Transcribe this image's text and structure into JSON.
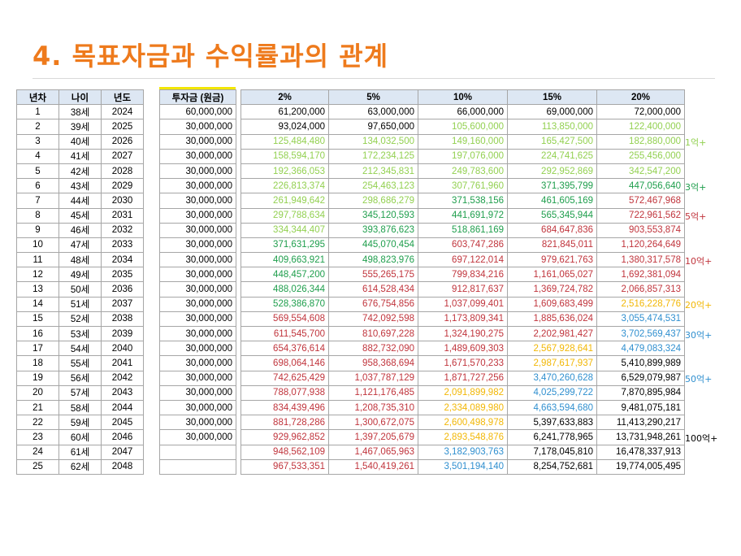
{
  "title": "4. 목표자금과 수익률과의 관계",
  "year_table": {
    "headers": [
      "년차",
      "나이",
      "년도"
    ],
    "rows": [
      [
        "1",
        "38세",
        "2024"
      ],
      [
        "2",
        "39세",
        "2025"
      ],
      [
        "3",
        "40세",
        "2026"
      ],
      [
        "4",
        "41세",
        "2027"
      ],
      [
        "5",
        "42세",
        "2028"
      ],
      [
        "6",
        "43세",
        "2029"
      ],
      [
        "7",
        "44세",
        "2030"
      ],
      [
        "8",
        "45세",
        "2031"
      ],
      [
        "9",
        "46세",
        "2032"
      ],
      [
        "10",
        "47세",
        "2033"
      ],
      [
        "11",
        "48세",
        "2034"
      ],
      [
        "12",
        "49세",
        "2035"
      ],
      [
        "13",
        "50세",
        "2036"
      ],
      [
        "14",
        "51세",
        "2037"
      ],
      [
        "15",
        "52세",
        "2038"
      ],
      [
        "16",
        "53세",
        "2039"
      ],
      [
        "17",
        "54세",
        "2040"
      ],
      [
        "18",
        "55세",
        "2041"
      ],
      [
        "19",
        "56세",
        "2042"
      ],
      [
        "20",
        "57세",
        "2043"
      ],
      [
        "21",
        "58세",
        "2044"
      ],
      [
        "22",
        "59세",
        "2045"
      ],
      [
        "23",
        "60세",
        "2046"
      ],
      [
        "24",
        "61세",
        "2047"
      ],
      [
        "25",
        "62세",
        "2048"
      ]
    ]
  },
  "invest_table": {
    "header": "투자금 (원금)",
    "values": [
      "60,000,000",
      "30,000,000",
      "30,000,000",
      "30,000,000",
      "30,000,000",
      "30,000,000",
      "30,000,000",
      "30,000,000",
      "30,000,000",
      "30,000,000",
      "30,000,000",
      "30,000,000",
      "30,000,000",
      "30,000,000",
      "30,000,000",
      "30,000,000",
      "30,000,000",
      "30,000,000",
      "30,000,000",
      "30,000,000",
      "30,000,000",
      "30,000,000",
      "30,000,000",
      "",
      ""
    ]
  },
  "returns_table": {
    "headers": [
      "2%",
      "5%",
      "10%",
      "15%",
      "20%"
    ],
    "colors": {
      "k": "#000000",
      "g": "#92d050",
      "dg": "#1e9e4c",
      "r": "#c0343c",
      "y": "#f2b705",
      "b": "#2f8fcf"
    },
    "rows": [
      [
        [
          "61,200,000",
          "k"
        ],
        [
          "63,000,000",
          "k"
        ],
        [
          "66,000,000",
          "k"
        ],
        [
          "69,000,000",
          "k"
        ],
        [
          "72,000,000",
          "k"
        ]
      ],
      [
        [
          "93,024,000",
          "k"
        ],
        [
          "97,650,000",
          "k"
        ],
        [
          "105,600,000",
          "g"
        ],
        [
          "113,850,000",
          "g"
        ],
        [
          "122,400,000",
          "g"
        ]
      ],
      [
        [
          "125,484,480",
          "g"
        ],
        [
          "134,032,500",
          "g"
        ],
        [
          "149,160,000",
          "g"
        ],
        [
          "165,427,500",
          "g"
        ],
        [
          "182,880,000",
          "g"
        ]
      ],
      [
        [
          "158,594,170",
          "g"
        ],
        [
          "172,234,125",
          "g"
        ],
        [
          "197,076,000",
          "g"
        ],
        [
          "224,741,625",
          "g"
        ],
        [
          "255,456,000",
          "g"
        ]
      ],
      [
        [
          "192,366,053",
          "g"
        ],
        [
          "212,345,831",
          "g"
        ],
        [
          "249,783,600",
          "g"
        ],
        [
          "292,952,869",
          "g"
        ],
        [
          "342,547,200",
          "g"
        ]
      ],
      [
        [
          "226,813,374",
          "g"
        ],
        [
          "254,463,123",
          "g"
        ],
        [
          "307,761,960",
          "g"
        ],
        [
          "371,395,799",
          "dg"
        ],
        [
          "447,056,640",
          "dg"
        ]
      ],
      [
        [
          "261,949,642",
          "g"
        ],
        [
          "298,686,279",
          "g"
        ],
        [
          "371,538,156",
          "dg"
        ],
        [
          "461,605,169",
          "dg"
        ],
        [
          "572,467,968",
          "r"
        ]
      ],
      [
        [
          "297,788,634",
          "g"
        ],
        [
          "345,120,593",
          "dg"
        ],
        [
          "441,691,972",
          "dg"
        ],
        [
          "565,345,944",
          "dg"
        ],
        [
          "722,961,562",
          "r"
        ]
      ],
      [
        [
          "334,344,407",
          "g"
        ],
        [
          "393,876,623",
          "dg"
        ],
        [
          "518,861,169",
          "dg"
        ],
        [
          "684,647,836",
          "r"
        ],
        [
          "903,553,874",
          "r"
        ]
      ],
      [
        [
          "371,631,295",
          "dg"
        ],
        [
          "445,070,454",
          "dg"
        ],
        [
          "603,747,286",
          "r"
        ],
        [
          "821,845,011",
          "r"
        ],
        [
          "1,120,264,649",
          "r"
        ]
      ],
      [
        [
          "409,663,921",
          "dg"
        ],
        [
          "498,823,976",
          "dg"
        ],
        [
          "697,122,014",
          "r"
        ],
        [
          "979,621,763",
          "r"
        ],
        [
          "1,380,317,578",
          "r"
        ]
      ],
      [
        [
          "448,457,200",
          "dg"
        ],
        [
          "555,265,175",
          "r"
        ],
        [
          "799,834,216",
          "r"
        ],
        [
          "1,161,065,027",
          "r"
        ],
        [
          "1,692,381,094",
          "r"
        ]
      ],
      [
        [
          "488,026,344",
          "dg"
        ],
        [
          "614,528,434",
          "r"
        ],
        [
          "912,817,637",
          "r"
        ],
        [
          "1,369,724,782",
          "r"
        ],
        [
          "2,066,857,313",
          "r"
        ]
      ],
      [
        [
          "528,386,870",
          "dg"
        ],
        [
          "676,754,856",
          "r"
        ],
        [
          "1,037,099,401",
          "r"
        ],
        [
          "1,609,683,499",
          "r"
        ],
        [
          "2,516,228,776",
          "y"
        ]
      ],
      [
        [
          "569,554,608",
          "r"
        ],
        [
          "742,092,598",
          "r"
        ],
        [
          "1,173,809,341",
          "r"
        ],
        [
          "1,885,636,024",
          "r"
        ],
        [
          "3,055,474,531",
          "b"
        ]
      ],
      [
        [
          "611,545,700",
          "r"
        ],
        [
          "810,697,228",
          "r"
        ],
        [
          "1,324,190,275",
          "r"
        ],
        [
          "2,202,981,427",
          "r"
        ],
        [
          "3,702,569,437",
          "b"
        ]
      ],
      [
        [
          "654,376,614",
          "r"
        ],
        [
          "882,732,090",
          "r"
        ],
        [
          "1,489,609,303",
          "r"
        ],
        [
          "2,567,928,641",
          "y"
        ],
        [
          "4,479,083,324",
          "b"
        ]
      ],
      [
        [
          "698,064,146",
          "r"
        ],
        [
          "958,368,694",
          "r"
        ],
        [
          "1,671,570,233",
          "r"
        ],
        [
          "2,987,617,937",
          "y"
        ],
        [
          "5,410,899,989",
          "k"
        ]
      ],
      [
        [
          "742,625,429",
          "r"
        ],
        [
          "1,037,787,129",
          "r"
        ],
        [
          "1,871,727,256",
          "r"
        ],
        [
          "3,470,260,628",
          "b"
        ],
        [
          "6,529,079,987",
          "k"
        ]
      ],
      [
        [
          "788,077,938",
          "r"
        ],
        [
          "1,121,176,485",
          "r"
        ],
        [
          "2,091,899,982",
          "y"
        ],
        [
          "4,025,299,722",
          "b"
        ],
        [
          "7,870,895,984",
          "k"
        ]
      ],
      [
        [
          "834,439,496",
          "r"
        ],
        [
          "1,208,735,310",
          "r"
        ],
        [
          "2,334,089,980",
          "y"
        ],
        [
          "4,663,594,680",
          "b"
        ],
        [
          "9,481,075,181",
          "k"
        ]
      ],
      [
        [
          "881,728,286",
          "r"
        ],
        [
          "1,300,672,075",
          "r"
        ],
        [
          "2,600,498,978",
          "y"
        ],
        [
          "5,397,633,883",
          "k"
        ],
        [
          "11,413,290,217",
          "k"
        ]
      ],
      [
        [
          "929,962,852",
          "r"
        ],
        [
          "1,397,205,679",
          "r"
        ],
        [
          "2,893,548,876",
          "y"
        ],
        [
          "6,241,778,965",
          "k"
        ],
        [
          "13,731,948,261",
          "k"
        ]
      ],
      [
        [
          "948,562,109",
          "r"
        ],
        [
          "1,467,065,963",
          "r"
        ],
        [
          "3,182,903,763",
          "b"
        ],
        [
          "7,178,045,810",
          "k"
        ],
        [
          "16,478,337,913",
          "k"
        ]
      ],
      [
        [
          "967,533,351",
          "r"
        ],
        [
          "1,540,419,261",
          "r"
        ],
        [
          "3,501,194,140",
          "b"
        ],
        [
          "8,254,752,681",
          "k"
        ],
        [
          "19,774,005,495",
          "k"
        ]
      ]
    ]
  },
  "notes": [
    {
      "text": "1억+",
      "color": "#92d050",
      "row": 3
    },
    {
      "text": "3억+",
      "color": "#1e9e4c",
      "row": 6
    },
    {
      "text": "5억+",
      "color": "#c0343c",
      "row": 8
    },
    {
      "text": "10억+",
      "color": "#c0343c",
      "row": 11
    },
    {
      "text": "20억+",
      "color": "#f2b705",
      "row": 14
    },
    {
      "text": "30억+",
      "color": "#2f8fcf",
      "row": 16
    },
    {
      "text": "50억+",
      "color": "#2f8fcf",
      "row": 19
    },
    {
      "text": "100억+",
      "color": "#000000",
      "row": 23
    }
  ]
}
